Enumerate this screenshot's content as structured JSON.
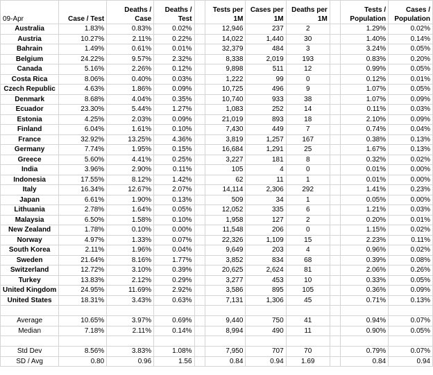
{
  "date_label": "09-Apr",
  "headers": {
    "case_test": "Case / Test",
    "deaths_case": "Deaths / Case",
    "deaths_test": "Deaths / Test",
    "tests_per_1m": "Tests per 1M",
    "cases_per_1m": "Cases per 1M",
    "deaths_per_1m": "Deaths per 1M",
    "tests_pop": "Tests / Population",
    "cases_pop": "Cases / Population"
  },
  "rows": [
    {
      "country": "Australia",
      "case_test": "1.83%",
      "deaths_case": "0.83%",
      "deaths_test": "0.02%",
      "tests_per_1m": "12,946",
      "cases_per_1m": "237",
      "deaths_per_1m": "2",
      "tests_pop": "1.29%",
      "cases_pop": "0.02%"
    },
    {
      "country": "Austria",
      "case_test": "10.27%",
      "deaths_case": "2.11%",
      "deaths_test": "0.22%",
      "tests_per_1m": "14,022",
      "cases_per_1m": "1,440",
      "deaths_per_1m": "30",
      "tests_pop": "1.40%",
      "cases_pop": "0.14%"
    },
    {
      "country": "Bahrain",
      "case_test": "1.49%",
      "deaths_case": "0.61%",
      "deaths_test": "0.01%",
      "tests_per_1m": "32,379",
      "cases_per_1m": "484",
      "deaths_per_1m": "3",
      "tests_pop": "3.24%",
      "cases_pop": "0.05%"
    },
    {
      "country": "Belgium",
      "case_test": "24.22%",
      "deaths_case": "9.57%",
      "deaths_test": "2.32%",
      "tests_per_1m": "8,338",
      "cases_per_1m": "2,019",
      "deaths_per_1m": "193",
      "tests_pop": "0.83%",
      "cases_pop": "0.20%"
    },
    {
      "country": "Canada",
      "case_test": "5.16%",
      "deaths_case": "2.26%",
      "deaths_test": "0.12%",
      "tests_per_1m": "9,898",
      "cases_per_1m": "511",
      "deaths_per_1m": "12",
      "tests_pop": "0.99%",
      "cases_pop": "0.05%"
    },
    {
      "country": "Costa Rica",
      "case_test": "8.06%",
      "deaths_case": "0.40%",
      "deaths_test": "0.03%",
      "tests_per_1m": "1,222",
      "cases_per_1m": "99",
      "deaths_per_1m": "0",
      "tests_pop": "0.12%",
      "cases_pop": "0.01%"
    },
    {
      "country": "Czech Republic",
      "case_test": "4.63%",
      "deaths_case": "1.86%",
      "deaths_test": "0.09%",
      "tests_per_1m": "10,725",
      "cases_per_1m": "496",
      "deaths_per_1m": "9",
      "tests_pop": "1.07%",
      "cases_pop": "0.05%"
    },
    {
      "country": "Denmark",
      "case_test": "8.68%",
      "deaths_case": "4.04%",
      "deaths_test": "0.35%",
      "tests_per_1m": "10,740",
      "cases_per_1m": "933",
      "deaths_per_1m": "38",
      "tests_pop": "1.07%",
      "cases_pop": "0.09%"
    },
    {
      "country": "Ecuador",
      "case_test": "23.30%",
      "deaths_case": "5.44%",
      "deaths_test": "1.27%",
      "tests_per_1m": "1,083",
      "cases_per_1m": "252",
      "deaths_per_1m": "14",
      "tests_pop": "0.11%",
      "cases_pop": "0.03%"
    },
    {
      "country": "Estonia",
      "case_test": "4.25%",
      "deaths_case": "2.03%",
      "deaths_test": "0.09%",
      "tests_per_1m": "21,019",
      "cases_per_1m": "893",
      "deaths_per_1m": "18",
      "tests_pop": "2.10%",
      "cases_pop": "0.09%"
    },
    {
      "country": "Finland",
      "case_test": "6.04%",
      "deaths_case": "1.61%",
      "deaths_test": "0.10%",
      "tests_per_1m": "7,430",
      "cases_per_1m": "449",
      "deaths_per_1m": "7",
      "tests_pop": "0.74%",
      "cases_pop": "0.04%"
    },
    {
      "country": "France",
      "case_test": "32.92%",
      "deaths_case": "13.25%",
      "deaths_test": "4.36%",
      "tests_per_1m": "3,819",
      "cases_per_1m": "1,257",
      "deaths_per_1m": "167",
      "tests_pop": "0.38%",
      "cases_pop": "0.13%"
    },
    {
      "country": "Germany",
      "case_test": "7.74%",
      "deaths_case": "1.95%",
      "deaths_test": "0.15%",
      "tests_per_1m": "16,684",
      "cases_per_1m": "1,291",
      "deaths_per_1m": "25",
      "tests_pop": "1.67%",
      "cases_pop": "0.13%"
    },
    {
      "country": "Greece",
      "case_test": "5.60%",
      "deaths_case": "4.41%",
      "deaths_test": "0.25%",
      "tests_per_1m": "3,227",
      "cases_per_1m": "181",
      "deaths_per_1m": "8",
      "tests_pop": "0.32%",
      "cases_pop": "0.02%"
    },
    {
      "country": "India",
      "case_test": "3.96%",
      "deaths_case": "2.90%",
      "deaths_test": "0.11%",
      "tests_per_1m": "105",
      "cases_per_1m": "4",
      "deaths_per_1m": "0",
      "tests_pop": "0.01%",
      "cases_pop": "0.00%"
    },
    {
      "country": "Indonesia",
      "case_test": "17.55%",
      "deaths_case": "8.12%",
      "deaths_test": "1.42%",
      "tests_per_1m": "62",
      "cases_per_1m": "11",
      "deaths_per_1m": "1",
      "tests_pop": "0.01%",
      "cases_pop": "0.00%"
    },
    {
      "country": "Italy",
      "case_test": "16.34%",
      "deaths_case": "12.67%",
      "deaths_test": "2.07%",
      "tests_per_1m": "14,114",
      "cases_per_1m": "2,306",
      "deaths_per_1m": "292",
      "tests_pop": "1.41%",
      "cases_pop": "0.23%"
    },
    {
      "country": "Japan",
      "case_test": "6.61%",
      "deaths_case": "1.90%",
      "deaths_test": "0.13%",
      "tests_per_1m": "509",
      "cases_per_1m": "34",
      "deaths_per_1m": "1",
      "tests_pop": "0.05%",
      "cases_pop": "0.00%"
    },
    {
      "country": "Lithuania",
      "case_test": "2.78%",
      "deaths_case": "1.64%",
      "deaths_test": "0.05%",
      "tests_per_1m": "12,052",
      "cases_per_1m": "335",
      "deaths_per_1m": "6",
      "tests_pop": "1.21%",
      "cases_pop": "0.03%"
    },
    {
      "country": "Malaysia",
      "case_test": "6.50%",
      "deaths_case": "1.58%",
      "deaths_test": "0.10%",
      "tests_per_1m": "1,958",
      "cases_per_1m": "127",
      "deaths_per_1m": "2",
      "tests_pop": "0.20%",
      "cases_pop": "0.01%"
    },
    {
      "country": "New Zealand",
      "case_test": "1.78%",
      "deaths_case": "0.10%",
      "deaths_test": "0.00%",
      "tests_per_1m": "11,548",
      "cases_per_1m": "206",
      "deaths_per_1m": "0",
      "tests_pop": "1.15%",
      "cases_pop": "0.02%"
    },
    {
      "country": "Norway",
      "case_test": "4.97%",
      "deaths_case": "1.33%",
      "deaths_test": "0.07%",
      "tests_per_1m": "22,326",
      "cases_per_1m": "1,109",
      "deaths_per_1m": "15",
      "tests_pop": "2.23%",
      "cases_pop": "0.11%"
    },
    {
      "country": "South Korea",
      "case_test": "2.11%",
      "deaths_case": "1.96%",
      "deaths_test": "0.04%",
      "tests_per_1m": "9,649",
      "cases_per_1m": "203",
      "deaths_per_1m": "4",
      "tests_pop": "0.96%",
      "cases_pop": "0.02%"
    },
    {
      "country": "Sweden",
      "case_test": "21.64%",
      "deaths_case": "8.16%",
      "deaths_test": "1.77%",
      "tests_per_1m": "3,852",
      "cases_per_1m": "834",
      "deaths_per_1m": "68",
      "tests_pop": "0.39%",
      "cases_pop": "0.08%"
    },
    {
      "country": "Switzerland",
      "case_test": "12.72%",
      "deaths_case": "3.10%",
      "deaths_test": "0.39%",
      "tests_per_1m": "20,625",
      "cases_per_1m": "2,624",
      "deaths_per_1m": "81",
      "tests_pop": "2.06%",
      "cases_pop": "0.26%"
    },
    {
      "country": "Turkey",
      "case_test": "13.83%",
      "deaths_case": "2.12%",
      "deaths_test": "0.29%",
      "tests_per_1m": "3,277",
      "cases_per_1m": "453",
      "deaths_per_1m": "10",
      "tests_pop": "0.33%",
      "cases_pop": "0.05%"
    },
    {
      "country": "United Kingdom",
      "case_test": "24.95%",
      "deaths_case": "11.69%",
      "deaths_test": "2.92%",
      "tests_per_1m": "3,586",
      "cases_per_1m": "895",
      "deaths_per_1m": "105",
      "tests_pop": "0.36%",
      "cases_pop": "0.09%"
    },
    {
      "country": "United States",
      "case_test": "18.31%",
      "deaths_case": "3.43%",
      "deaths_test": "0.63%",
      "tests_per_1m": "7,131",
      "cases_per_1m": "1,306",
      "deaths_per_1m": "45",
      "tests_pop": "0.71%",
      "cases_pop": "0.13%"
    }
  ],
  "summary_a": [
    {
      "label": "Average",
      "case_test": "10.65%",
      "deaths_case": "3.97%",
      "deaths_test": "0.69%",
      "tests_per_1m": "9,440",
      "cases_per_1m": "750",
      "deaths_per_1m": "41",
      "tests_pop": "0.94%",
      "cases_pop": "0.07%"
    },
    {
      "label": "Median",
      "case_test": "7.18%",
      "deaths_case": "2.11%",
      "deaths_test": "0.14%",
      "tests_per_1m": "8,994",
      "cases_per_1m": "490",
      "deaths_per_1m": "11",
      "tests_pop": "0.90%",
      "cases_pop": "0.05%"
    }
  ],
  "summary_b": [
    {
      "label": "Std Dev",
      "case_test": "8.56%",
      "deaths_case": "3.83%",
      "deaths_test": "1.08%",
      "tests_per_1m": "7,950",
      "cases_per_1m": "707",
      "deaths_per_1m": "70",
      "tests_pop": "0.79%",
      "cases_pop": "0.07%"
    },
    {
      "label": "SD / Avg",
      "case_test": "0.80",
      "deaths_case": "0.96",
      "deaths_test": "1.56",
      "tests_per_1m": "0.84",
      "cases_per_1m": "0.94",
      "deaths_per_1m": "1.69",
      "tests_pop": "0.84",
      "cases_pop": "0.94"
    }
  ]
}
